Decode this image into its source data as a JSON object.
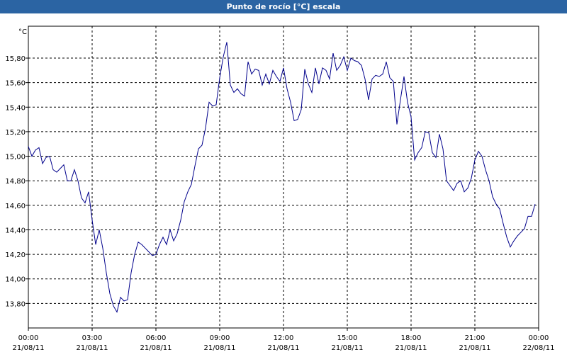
{
  "chart_data": {
    "type": "line",
    "title": "Punto de rocío [°C] escala",
    "unit": "°C",
    "xlim": [
      0,
      1440
    ],
    "xticks": [
      {
        "value": 0,
        "label": "00:00",
        "date": "21/08/11"
      },
      {
        "value": 180,
        "label": "03:00",
        "date": "21/08/11"
      },
      {
        "value": 360,
        "label": "06:00",
        "date": "21/08/11"
      },
      {
        "value": 540,
        "label": "09:00",
        "date": "21/08/11"
      },
      {
        "value": 720,
        "label": "12:00",
        "date": "21/08/11"
      },
      {
        "value": 900,
        "label": "15:00",
        "date": "21/08/11"
      },
      {
        "value": 1080,
        "label": "18:00",
        "date": "21/08/11"
      },
      {
        "value": 1260,
        "label": "21:00",
        "date": "21/08/11"
      },
      {
        "value": 1440,
        "label": "00:00",
        "date": "22/08/11"
      }
    ],
    "ylim": [
      13.6,
      16.06
    ],
    "yticks": [
      {
        "value": 13.8,
        "label": "13,80"
      },
      {
        "value": 14.0,
        "label": "14,00"
      },
      {
        "value": 14.2,
        "label": "14,20"
      },
      {
        "value": 14.4,
        "label": "14,40"
      },
      {
        "value": 14.6,
        "label": "14,60"
      },
      {
        "value": 14.8,
        "label": "14,80"
      },
      {
        "value": 15.0,
        "label": "15,00"
      },
      {
        "value": 15.2,
        "label": "15,20"
      },
      {
        "value": 15.4,
        "label": "15,40"
      },
      {
        "value": 15.6,
        "label": "15,60"
      },
      {
        "value": 15.8,
        "label": "15,80"
      }
    ],
    "grid": true,
    "x": [
      0,
      10,
      20,
      30,
      40,
      50,
      60,
      70,
      80,
      90,
      100,
      110,
      120,
      130,
      140,
      150,
      160,
      170,
      180,
      190,
      200,
      210,
      220,
      230,
      240,
      250,
      260,
      270,
      280,
      290,
      300,
      310,
      320,
      330,
      340,
      350,
      360,
      370,
      380,
      390,
      400,
      410,
      420,
      430,
      440,
      450,
      460,
      470,
      480,
      490,
      500,
      510,
      520,
      530,
      540,
      550,
      560,
      570,
      580,
      590,
      600,
      610,
      620,
      630,
      640,
      650,
      660,
      670,
      680,
      690,
      700,
      710,
      720,
      730,
      740,
      750,
      760,
      770,
      780,
      790,
      800,
      810,
      820,
      830,
      840,
      850,
      860,
      870,
      880,
      890,
      900,
      910,
      920,
      930,
      940,
      950,
      960,
      970,
      980,
      990,
      1000,
      1010,
      1020,
      1030,
      1040,
      1050,
      1060,
      1070,
      1080,
      1090,
      1100,
      1110,
      1120,
      1130,
      1140,
      1150,
      1160,
      1170,
      1180,
      1190,
      1200,
      1210,
      1220,
      1230,
      1240,
      1250,
      1260,
      1270,
      1280,
      1290,
      1300,
      1310,
      1320,
      1330,
      1340,
      1350,
      1360,
      1370,
      1380,
      1390,
      1400,
      1410,
      1420,
      1430
    ],
    "series": [
      {
        "name": "Punto de rocío",
        "color": "#00008b",
        "values": [
          15.08,
          15.0,
          15.05,
          15.07,
          14.94,
          14.99,
          15.0,
          14.89,
          14.87,
          14.9,
          14.93,
          14.8,
          14.8,
          14.89,
          14.8,
          14.66,
          14.62,
          14.71,
          14.48,
          14.28,
          14.4,
          14.25,
          14.05,
          13.88,
          13.78,
          13.73,
          13.85,
          13.82,
          13.83,
          14.05,
          14.2,
          14.3,
          14.28,
          14.25,
          14.22,
          14.19,
          14.2,
          14.28,
          14.34,
          14.28,
          14.4,
          14.31,
          14.37,
          14.48,
          14.63,
          14.71,
          14.77,
          14.92,
          15.06,
          15.09,
          15.23,
          15.44,
          15.41,
          15.42,
          15.64,
          15.81,
          15.93,
          15.58,
          15.52,
          15.55,
          15.51,
          15.49,
          15.77,
          15.67,
          15.71,
          15.7,
          15.58,
          15.67,
          15.59,
          15.7,
          15.65,
          15.61,
          15.72,
          15.55,
          15.44,
          15.29,
          15.3,
          15.38,
          15.71,
          15.59,
          15.52,
          15.72,
          15.59,
          15.72,
          15.7,
          15.63,
          15.84,
          15.7,
          15.74,
          15.81,
          15.7,
          15.8,
          15.78,
          15.77,
          15.74,
          15.63,
          15.46,
          15.63,
          15.66,
          15.65,
          15.67,
          15.77,
          15.64,
          15.61,
          15.26,
          15.46,
          15.65,
          15.44,
          15.32,
          14.97,
          15.03,
          15.07,
          15.2,
          15.19,
          15.03,
          14.99,
          15.18,
          15.06,
          14.8,
          14.76,
          14.72,
          14.78,
          14.8,
          14.71,
          14.74,
          14.82,
          14.97,
          15.04,
          15.0,
          14.89,
          14.8,
          14.67,
          14.61,
          14.57,
          14.45,
          14.34,
          14.26,
          14.31,
          14.35,
          14.38,
          14.41,
          14.51,
          14.51,
          14.61
        ]
      }
    ]
  }
}
